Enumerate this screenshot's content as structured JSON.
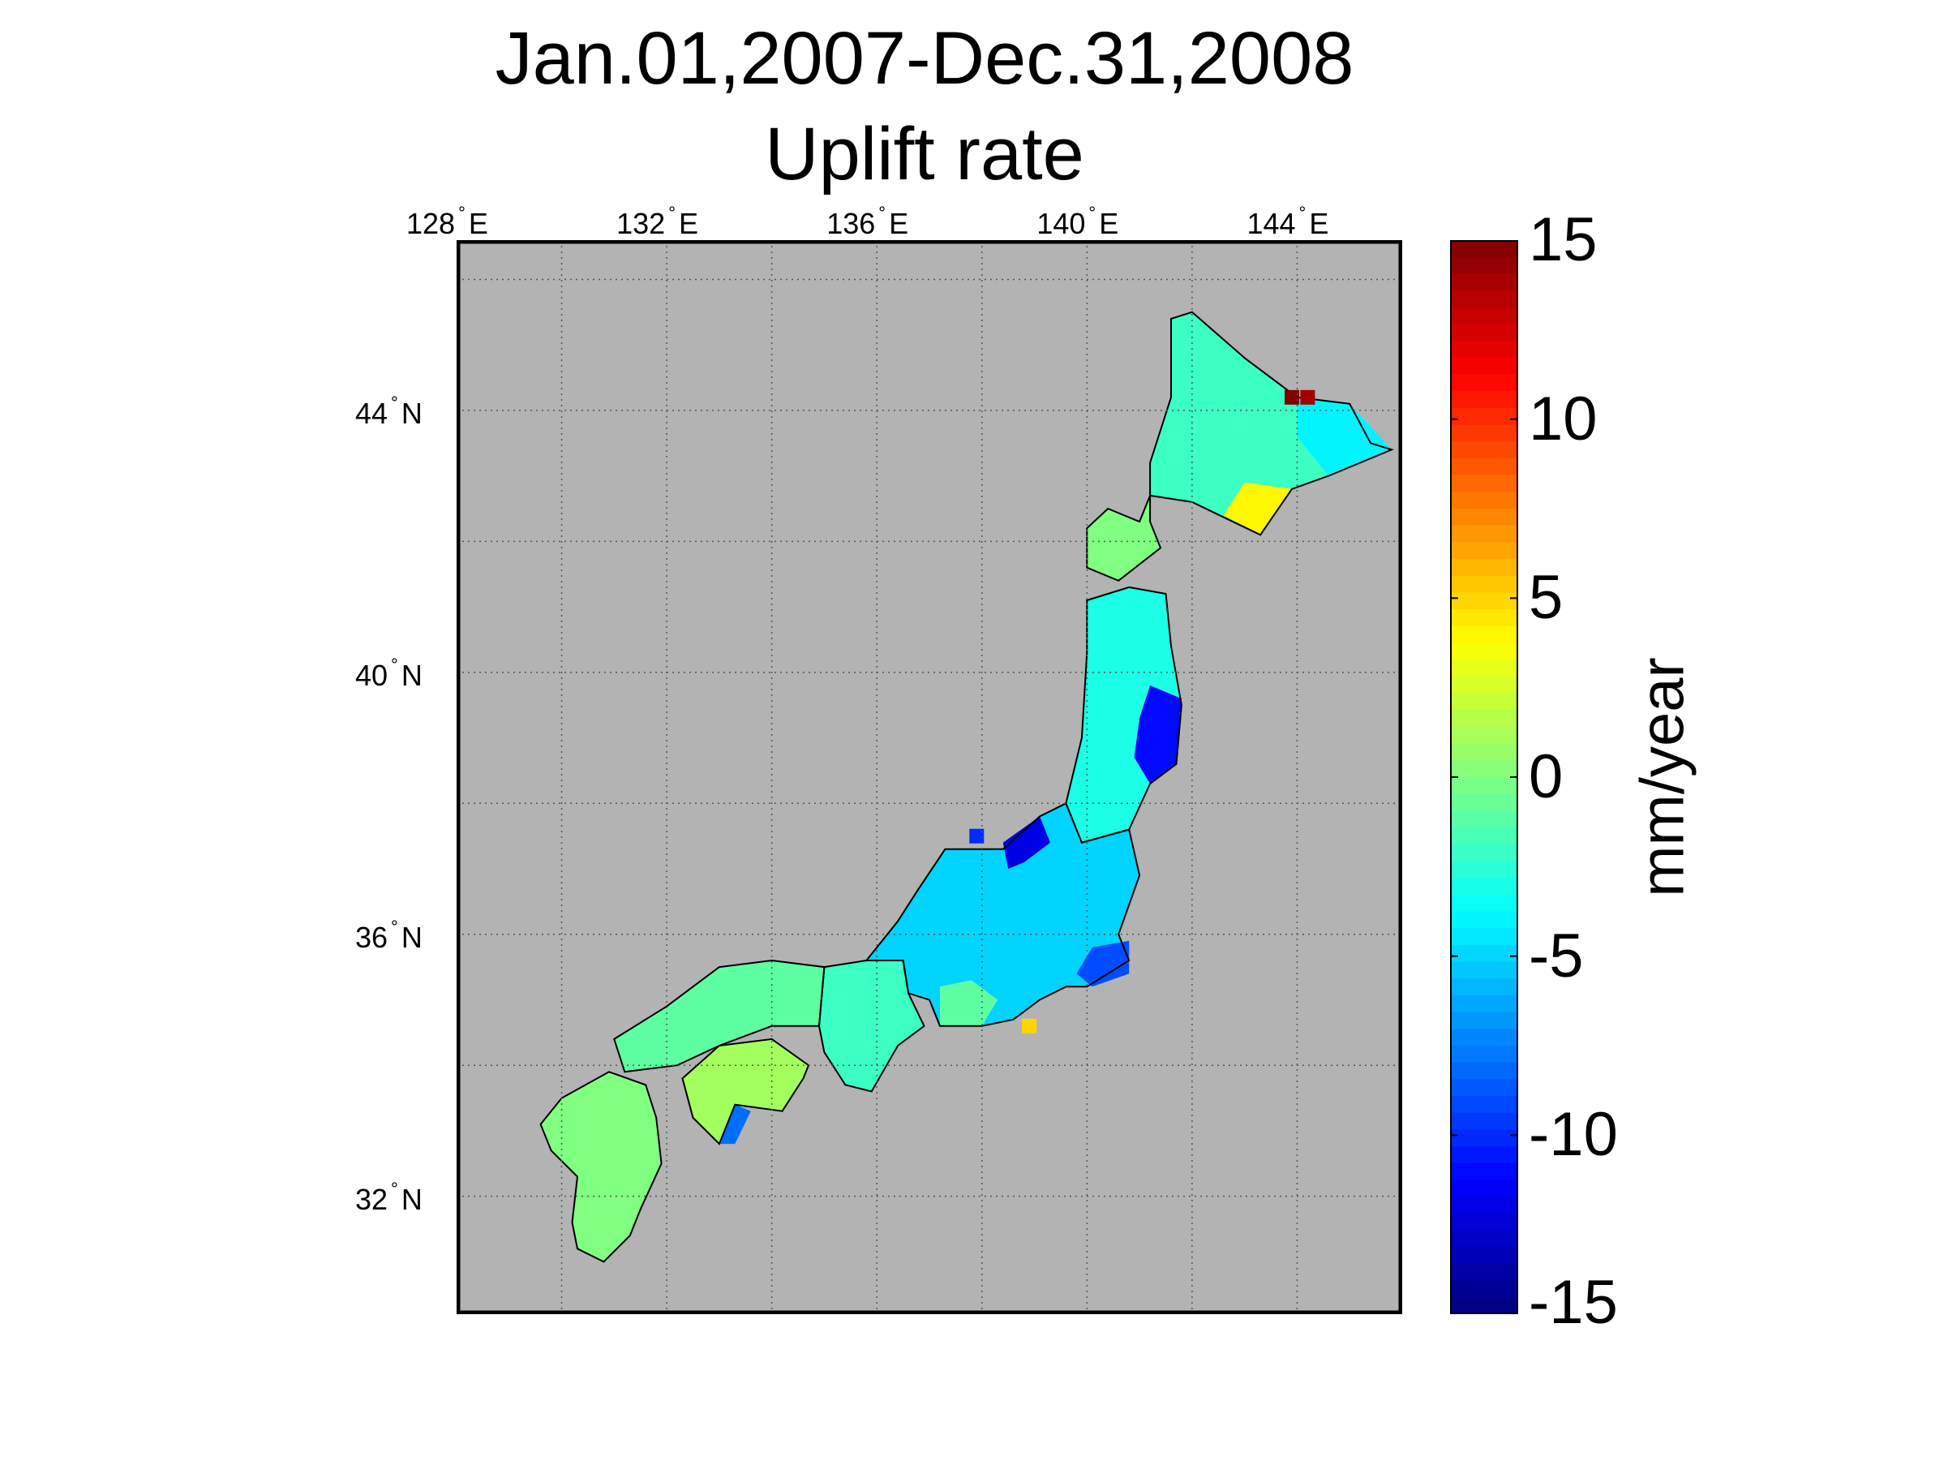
{
  "title_line1": "Jan.01,2007-Dec.31,2008",
  "title_line2": "Uplift rate",
  "lon_ticks": [
    {
      "value": 128,
      "num": "128",
      "hem": "E"
    },
    {
      "value": 132,
      "num": "132",
      "hem": "E"
    },
    {
      "value": 136,
      "num": "136",
      "hem": "E"
    },
    {
      "value": 140,
      "num": "140",
      "hem": "E"
    },
    {
      "value": 144,
      "num": "144",
      "hem": "E"
    }
  ],
  "lat_ticks": [
    {
      "value": 44,
      "num": "44",
      "hem": "N"
    },
    {
      "value": 40,
      "num": "40",
      "hem": "N"
    },
    {
      "value": 36,
      "num": "36",
      "hem": "N"
    },
    {
      "value": 32,
      "num": "32",
      "hem": "N"
    }
  ],
  "degree_symbol": "°",
  "map_extent": {
    "lon_min": 128,
    "lon_max": 146,
    "lat_min": 30.2,
    "lat_max": 46.6
  },
  "colorbar": {
    "min": -15,
    "max": 15,
    "ticks": [
      "15",
      "10",
      "5",
      "0",
      "-5",
      "-10",
      "-15"
    ],
    "tick_values": [
      15,
      10,
      5,
      0,
      -5,
      -10,
      -15
    ],
    "unit": "mm/year",
    "colormap": "jet"
  },
  "colors": {
    "sea": "#b3b3b3",
    "coast": "#000000",
    "grid": "#555555",
    "frame": "#000000"
  },
  "regions": [
    {
      "name": "hokkaido-north",
      "value": -2,
      "outline": [
        [
          141.6,
          45.4
        ],
        [
          142.0,
          45.5
        ],
        [
          143.0,
          44.8
        ],
        [
          144.0,
          44.2
        ],
        [
          145.0,
          44.1
        ],
        [
          145.4,
          43.5
        ],
        [
          145.8,
          43.4
        ],
        [
          144.6,
          43.0
        ],
        [
          143.9,
          42.8
        ],
        [
          143.3,
          42.1
        ],
        [
          142.0,
          42.6
        ],
        [
          141.2,
          42.7
        ],
        [
          141.2,
          43.2
        ],
        [
          141.6,
          44.2
        ]
      ]
    },
    {
      "name": "hokkaido-east",
      "value": -4,
      "outline": [
        [
          144.0,
          44.2
        ],
        [
          145.0,
          44.1
        ],
        [
          145.8,
          43.4
        ],
        [
          144.6,
          43.0
        ],
        [
          144.0,
          43.6
        ]
      ]
    },
    {
      "name": "hokkaido-south-uplift",
      "value": 4,
      "outline": [
        [
          143.0,
          42.9
        ],
        [
          143.9,
          42.8
        ],
        [
          143.3,
          42.1
        ],
        [
          142.6,
          42.4
        ]
      ]
    },
    {
      "name": "oshima-peninsula",
      "value": 0,
      "outline": [
        [
          141.2,
          42.7
        ],
        [
          141.0,
          42.3
        ],
        [
          140.4,
          42.5
        ],
        [
          140.0,
          42.2
        ],
        [
          140.0,
          41.6
        ],
        [
          140.6,
          41.4
        ],
        [
          141.4,
          41.9
        ],
        [
          141.2,
          42.3
        ]
      ]
    },
    {
      "name": "tohoku-north",
      "value": -3,
      "outline": [
        [
          140.0,
          41.1
        ],
        [
          140.8,
          41.3
        ],
        [
          141.5,
          41.2
        ],
        [
          141.6,
          40.4
        ],
        [
          141.8,
          39.5
        ],
        [
          141.7,
          38.6
        ],
        [
          141.2,
          38.3
        ],
        [
          140.8,
          37.6
        ],
        [
          139.9,
          37.4
        ],
        [
          139.6,
          38.0
        ],
        [
          139.9,
          39.0
        ],
        [
          140.0,
          40.3
        ]
      ]
    },
    {
      "name": "tohoku-pacific-subsidence",
      "value": -11,
      "outline": [
        [
          141.2,
          39.8
        ],
        [
          141.8,
          39.6
        ],
        [
          141.7,
          38.6
        ],
        [
          141.2,
          38.3
        ],
        [
          140.9,
          38.7
        ],
        [
          141.0,
          39.3
        ]
      ]
    },
    {
      "name": "honshu-central",
      "value": -5,
      "outline": [
        [
          139.9,
          37.4
        ],
        [
          140.8,
          37.6
        ],
        [
          141.0,
          36.9
        ],
        [
          140.6,
          36.0
        ],
        [
          140.8,
          35.6
        ],
        [
          140.0,
          35.2
        ],
        [
          139.6,
          35.2
        ],
        [
          139.1,
          35.0
        ],
        [
          138.6,
          34.7
        ],
        [
          138.0,
          34.6
        ],
        [
          137.2,
          34.6
        ],
        [
          137.0,
          35.0
        ],
        [
          136.6,
          35.1
        ],
        [
          136.5,
          35.6
        ],
        [
          135.8,
          35.6
        ],
        [
          136.4,
          36.2
        ],
        [
          136.8,
          36.7
        ],
        [
          137.3,
          37.3
        ],
        [
          138.4,
          37.3
        ],
        [
          139.1,
          37.8
        ],
        [
          139.6,
          38.0
        ]
      ]
    },
    {
      "name": "niigata-subsidence",
      "value": -12,
      "outline": [
        [
          138.4,
          37.4
        ],
        [
          139.1,
          37.8
        ],
        [
          139.3,
          37.4
        ],
        [
          138.8,
          37.1
        ],
        [
          138.5,
          37.0
        ]
      ]
    },
    {
      "name": "kanto-subsidence",
      "value": -9,
      "outline": [
        [
          140.1,
          35.8
        ],
        [
          140.8,
          35.9
        ],
        [
          140.8,
          35.4
        ],
        [
          140.1,
          35.2
        ],
        [
          139.8,
          35.4
        ]
      ]
    },
    {
      "name": "chubu-west",
      "value": -1,
      "outline": [
        [
          137.2,
          34.6
        ],
        [
          138.0,
          34.6
        ],
        [
          138.3,
          35.0
        ],
        [
          137.8,
          35.3
        ],
        [
          137.2,
          35.2
        ]
      ]
    },
    {
      "name": "kinki",
      "value": -2,
      "outline": [
        [
          135.8,
          35.6
        ],
        [
          136.5,
          35.6
        ],
        [
          136.6,
          35.1
        ],
        [
          136.9,
          34.6
        ],
        [
          136.4,
          34.3
        ],
        [
          135.9,
          33.6
        ],
        [
          135.4,
          33.7
        ],
        [
          135.0,
          34.2
        ],
        [
          134.9,
          34.6
        ],
        [
          135.0,
          35.5
        ]
      ]
    },
    {
      "name": "chugoku",
      "value": -1,
      "outline": [
        [
          131.0,
          34.4
        ],
        [
          132.0,
          34.9
        ],
        [
          133.0,
          35.5
        ],
        [
          134.0,
          35.6
        ],
        [
          135.0,
          35.5
        ],
        [
          134.9,
          34.6
        ],
        [
          134.0,
          34.6
        ],
        [
          133.0,
          34.3
        ],
        [
          132.2,
          34.0
        ],
        [
          131.2,
          33.9
        ]
      ]
    },
    {
      "name": "shikoku",
      "value": 1,
      "outline": [
        [
          132.3,
          33.8
        ],
        [
          133.0,
          34.3
        ],
        [
          134.0,
          34.4
        ],
        [
          134.7,
          34.0
        ],
        [
          134.6,
          33.8
        ],
        [
          134.2,
          33.3
        ],
        [
          133.3,
          33.4
        ],
        [
          133.0,
          32.8
        ],
        [
          132.5,
          33.2
        ]
      ]
    },
    {
      "name": "shikoku-south-cape",
      "value": -8,
      "outline": [
        [
          133.0,
          32.8
        ],
        [
          133.3,
          33.4
        ],
        [
          133.6,
          33.3
        ],
        [
          133.3,
          32.8
        ]
      ]
    },
    {
      "name": "kyushu",
      "value": 0,
      "outline": [
        [
          130.9,
          33.9
        ],
        [
          131.6,
          33.7
        ],
        [
          131.8,
          33.2
        ],
        [
          131.9,
          32.5
        ],
        [
          131.5,
          31.8
        ],
        [
          131.3,
          31.4
        ],
        [
          130.8,
          31.0
        ],
        [
          130.3,
          31.2
        ],
        [
          130.2,
          31.6
        ],
        [
          130.3,
          32.3
        ],
        [
          129.8,
          32.7
        ],
        [
          129.6,
          33.1
        ],
        [
          130.0,
          33.5
        ]
      ]
    }
  ],
  "markers": [
    {
      "name": "hokkaido-northeast-uplift",
      "lon": 143.9,
      "lat": 44.2,
      "value": 15
    },
    {
      "name": "hokkaido-northeast-uplift-2",
      "lon": 144.2,
      "lat": 44.2,
      "value": 14
    },
    {
      "name": "izu-uplift",
      "lon": 138.9,
      "lat": 34.6,
      "value": 5
    },
    {
      "name": "noto-cell",
      "lon": 137.9,
      "lat": 37.5,
      "value": -10
    }
  ]
}
